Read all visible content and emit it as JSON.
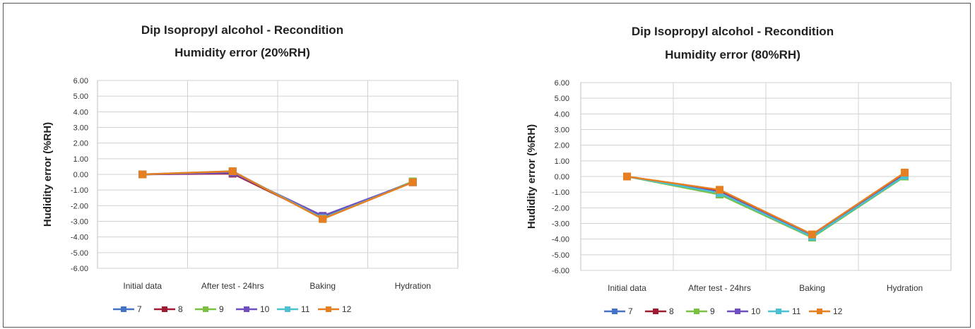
{
  "chart_data": [
    {
      "type": "line",
      "title_line1": "Dip Isopropyl alcohol  - Recondition",
      "title_line2": "Humidity error (20%RH)",
      "xlabel": "",
      "ylabel": "Hudidity error (%RH)",
      "ylim": [
        -6,
        6
      ],
      "ytick_step": 1,
      "categories": [
        "Initial data",
        "After test - 24hrs",
        "Baking",
        "Hydration"
      ],
      "grid": true,
      "legend": "bottom",
      "series": [
        {
          "name": "7",
          "color": "#4472c4",
          "values": [
            0.0,
            0.1,
            -2.7,
            -0.5
          ]
        },
        {
          "name": "8",
          "color": "#9e1b32",
          "values": [
            0.0,
            0.05,
            -2.75,
            -0.5
          ]
        },
        {
          "name": "9",
          "color": "#7ac142",
          "values": [
            0.0,
            0.15,
            -2.8,
            -0.45
          ]
        },
        {
          "name": "10",
          "color": "#6f4fc0",
          "values": [
            0.0,
            0.1,
            -2.65,
            -0.5
          ]
        },
        {
          "name": "11",
          "color": "#4bc0d0",
          "values": [
            0.0,
            0.2,
            -2.8,
            -0.5
          ]
        },
        {
          "name": "12",
          "color": "#e67e22",
          "values": [
            0.0,
            0.2,
            -2.85,
            -0.5
          ]
        }
      ]
    },
    {
      "type": "line",
      "title_line1": "Dip Isopropyl alcohol  - Recondition",
      "title_line2": "Humidity error (80%RH)",
      "xlabel": "",
      "ylabel": "Hudidity error (%RH)",
      "ylim": [
        -6,
        6
      ],
      "ytick_step": 1,
      "categories": [
        "Initial data",
        "After test - 24hrs",
        "Baking",
        "Hydration"
      ],
      "grid": true,
      "legend": "bottom",
      "series": [
        {
          "name": "7",
          "color": "#4472c4",
          "values": [
            0.0,
            -1.0,
            -3.8,
            0.1
          ]
        },
        {
          "name": "8",
          "color": "#9e1b32",
          "values": [
            0.0,
            -0.95,
            -3.75,
            0.15
          ]
        },
        {
          "name": "9",
          "color": "#7ac142",
          "values": [
            0.0,
            -1.15,
            -3.9,
            0.0
          ]
        },
        {
          "name": "10",
          "color": "#6f4fc0",
          "values": [
            0.0,
            -1.0,
            -3.8,
            0.1
          ]
        },
        {
          "name": "11",
          "color": "#4bc0d0",
          "values": [
            0.0,
            -1.05,
            -3.85,
            0.05
          ]
        },
        {
          "name": "12",
          "color": "#e67e22",
          "values": [
            0.0,
            -0.85,
            -3.7,
            0.25
          ]
        }
      ]
    }
  ]
}
